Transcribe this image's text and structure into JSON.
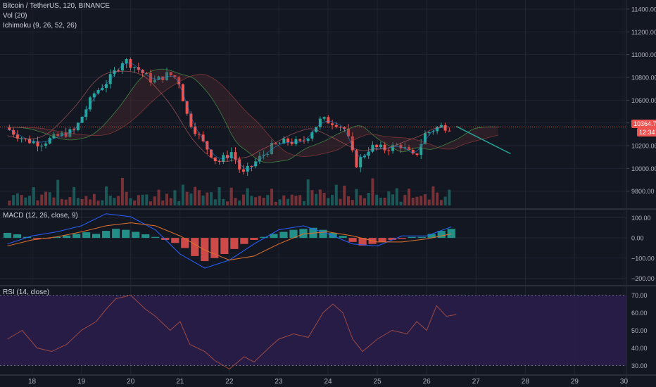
{
  "header": {
    "symbol_line": "Bitcoin / TetherUS, 120, BINANCE",
    "vol_label": "Vol (20)",
    "ichimoku_label": "Ichimoku (9, 26, 52, 26)",
    "macd_label": "MACD (12, 26, close, 9)",
    "rsi_label": "RSI (14, close)"
  },
  "price_axis": {
    "ticks": [
      "11400.00",
      "11200.00",
      "11000.00",
      "10800.00",
      "10600.00",
      "10400.00",
      "10200.00",
      "10000.00",
      "9800.00"
    ],
    "last_price": "10364.70",
    "countdown": "12:34"
  },
  "macd_axis": {
    "ticks": [
      "100.00",
      "0.00",
      "−100.00",
      "−200.00"
    ]
  },
  "rsi_axis": {
    "ticks": [
      "70.00",
      "60.00",
      "50.00",
      "40.00",
      "30.00"
    ]
  },
  "time_axis": {
    "ticks": [
      "18",
      "19",
      "20",
      "21",
      "22",
      "23",
      "24",
      "25",
      "26",
      "27",
      "28",
      "29",
      "30"
    ]
  },
  "colors": {
    "background": "#131722",
    "up": "#26a69a",
    "down": "#ef5350",
    "rsi_band": "#2a1d4a",
    "rsi_line": "#9b4a43",
    "macd_line": "#2962ff",
    "signal_line": "#e0722c",
    "tenkan": "#2196f3",
    "kijun": "#e57373",
    "chikou": "#4caf50"
  },
  "chart_data": [
    {
      "type": "candlestick",
      "title": "Bitcoin / TetherUS, 120, BINANCE",
      "ylim": [
        9650,
        11480
      ],
      "x_days": [
        "18",
        "19",
        "20",
        "21",
        "22",
        "23",
        "24",
        "25",
        "26",
        "27",
        "28",
        "29",
        "30"
      ],
      "close_path": [
        [
          17.5,
          10360
        ],
        [
          17.9,
          10250
        ],
        [
          18.2,
          10220
        ],
        [
          18.6,
          10290
        ],
        [
          18.9,
          10330
        ],
        [
          19.3,
          10660
        ],
        [
          19.6,
          10780
        ],
        [
          19.9,
          10960
        ],
        [
          20.2,
          10870
        ],
        [
          20.5,
          10760
        ],
        [
          20.8,
          10830
        ],
        [
          21.0,
          10790
        ],
        [
          21.2,
          10440
        ],
        [
          21.5,
          10230
        ],
        [
          21.8,
          10050
        ],
        [
          22.1,
          10150
        ],
        [
          22.3,
          9940
        ],
        [
          22.6,
          10070
        ],
        [
          22.9,
          10190
        ],
        [
          23.2,
          10240
        ],
        [
          23.5,
          10220
        ],
        [
          23.9,
          10430
        ],
        [
          24.2,
          10400
        ],
        [
          24.4,
          10340
        ],
        [
          24.6,
          10030
        ],
        [
          24.9,
          10190
        ],
        [
          25.2,
          10170
        ],
        [
          25.5,
          10210
        ],
        [
          25.8,
          10090
        ],
        [
          26.0,
          10300
        ],
        [
          26.3,
          10370
        ],
        [
          26.5,
          10364.7
        ]
      ],
      "projection_line": {
        "x": [
          26.6,
          27.7
        ],
        "y": [
          10370,
          10130
        ]
      },
      "last_price": 10364.7
    },
    {
      "type": "bar",
      "title": "Vol (20)",
      "note": "volume bars, heights relative",
      "values": [
        0.3,
        0.45,
        0.35,
        0.6,
        0.25,
        0.3,
        0.7,
        0.35,
        0.4,
        0.5,
        0.65,
        0.3,
        0.9,
        0.45,
        0.35,
        0.55,
        0.75,
        0.3,
        0.4,
        0.6,
        0.35,
        0.7,
        0.3,
        0.25,
        0.8,
        0.3,
        0.35,
        0.4,
        0.9,
        0.5,
        0.3
      ]
    },
    {
      "type": "bar",
      "title": "MACD (12, 26, close, 9)",
      "ylim": [
        -230,
        140
      ],
      "histogram": [
        [
          17.5,
          25
        ],
        [
          17.7,
          18
        ],
        [
          17.9,
          5
        ],
        [
          18.1,
          -5
        ],
        [
          18.3,
          -3
        ],
        [
          18.5,
          5
        ],
        [
          18.7,
          12
        ],
        [
          18.9,
          20
        ],
        [
          19.1,
          28
        ],
        [
          19.3,
          20
        ],
        [
          19.5,
          35
        ],
        [
          19.7,
          45
        ],
        [
          19.9,
          40
        ],
        [
          20.1,
          30
        ],
        [
          20.3,
          18
        ],
        [
          20.5,
          5
        ],
        [
          20.7,
          -10
        ],
        [
          20.9,
          -25
        ],
        [
          21.1,
          -50
        ],
        [
          21.3,
          -90
        ],
        [
          21.5,
          -115
        ],
        [
          21.7,
          -100
        ],
        [
          21.9,
          -80
        ],
        [
          22.1,
          -55
        ],
        [
          22.3,
          -30
        ],
        [
          22.5,
          -10
        ],
        [
          22.7,
          5
        ],
        [
          22.9,
          20
        ],
        [
          23.1,
          30
        ],
        [
          23.3,
          40
        ],
        [
          23.5,
          45
        ],
        [
          23.7,
          50
        ],
        [
          23.9,
          40
        ],
        [
          24.1,
          25
        ],
        [
          24.3,
          10
        ],
        [
          24.5,
          -20
        ],
        [
          24.7,
          -38
        ],
        [
          24.9,
          -30
        ],
        [
          25.1,
          -20
        ],
        [
          25.3,
          -10
        ],
        [
          25.5,
          -5
        ],
        [
          25.7,
          5
        ],
        [
          25.9,
          5
        ],
        [
          26.1,
          20
        ],
        [
          26.3,
          35
        ],
        [
          26.5,
          45
        ]
      ],
      "macd_line": [
        [
          17.5,
          -30
        ],
        [
          18.0,
          10
        ],
        [
          18.5,
          30
        ],
        [
          19.0,
          60
        ],
        [
          19.5,
          120
        ],
        [
          20.0,
          105
        ],
        [
          20.5,
          40
        ],
        [
          21.0,
          -80
        ],
        [
          21.5,
          -150
        ],
        [
          22.0,
          -110
        ],
        [
          22.5,
          -30
        ],
        [
          23.0,
          40
        ],
        [
          23.5,
          60
        ],
        [
          24.0,
          20
        ],
        [
          24.5,
          -30
        ],
        [
          25.0,
          -40
        ],
        [
          25.5,
          10
        ],
        [
          26.0,
          10
        ],
        [
          26.5,
          55
        ]
      ],
      "signal_line": [
        [
          17.5,
          -40
        ],
        [
          18.0,
          -10
        ],
        [
          18.5,
          5
        ],
        [
          19.0,
          30
        ],
        [
          19.5,
          60
        ],
        [
          20.0,
          75
        ],
        [
          20.5,
          60
        ],
        [
          21.0,
          10
        ],
        [
          21.5,
          -60
        ],
        [
          22.0,
          -110
        ],
        [
          22.5,
          -90
        ],
        [
          23.0,
          -30
        ],
        [
          23.5,
          20
        ],
        [
          24.0,
          30
        ],
        [
          24.5,
          10
        ],
        [
          25.0,
          -20
        ],
        [
          25.5,
          -20
        ],
        [
          26.0,
          -5
        ],
        [
          26.5,
          20
        ]
      ]
    },
    {
      "type": "line",
      "title": "RSI (14, close)",
      "ylim": [
        25,
        75
      ],
      "bands": [
        30,
        70
      ],
      "values": [
        [
          17.5,
          45
        ],
        [
          17.8,
          50
        ],
        [
          18.1,
          40
        ],
        [
          18.4,
          38
        ],
        [
          18.7,
          42
        ],
        [
          19.0,
          50
        ],
        [
          19.3,
          55
        ],
        [
          19.5,
          62
        ],
        [
          19.7,
          68
        ],
        [
          20.0,
          70
        ],
        [
          20.3,
          62
        ],
        [
          20.5,
          58
        ],
        [
          20.8,
          50
        ],
        [
          21.0,
          55
        ],
        [
          21.2,
          42
        ],
        [
          21.5,
          38
        ],
        [
          21.7,
          33
        ],
        [
          22.0,
          28
        ],
        [
          22.3,
          35
        ],
        [
          22.5,
          32
        ],
        [
          22.8,
          40
        ],
        [
          23.0,
          45
        ],
        [
          23.3,
          48
        ],
        [
          23.6,
          46
        ],
        [
          23.9,
          60
        ],
        [
          24.1,
          65
        ],
        [
          24.3,
          60
        ],
        [
          24.5,
          45
        ],
        [
          24.7,
          38
        ],
        [
          25.0,
          45
        ],
        [
          25.3,
          50
        ],
        [
          25.6,
          48
        ],
        [
          25.8,
          55
        ],
        [
          26.0,
          50
        ],
        [
          26.2,
          64
        ],
        [
          26.4,
          58
        ],
        [
          26.6,
          59
        ]
      ]
    }
  ]
}
